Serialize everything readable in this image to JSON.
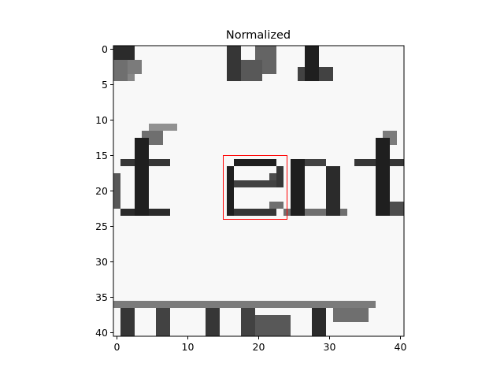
{
  "chart_data": {
    "type": "heatmap",
    "title": "Normalized",
    "colormap": "gray",
    "image_size": [
      41,
      41
    ],
    "x_ticks": [
      "0",
      "10",
      "20",
      "30",
      "40"
    ],
    "y_ticks": [
      "0",
      "5",
      "10",
      "15",
      "20",
      "25",
      "30",
      "35",
      "40"
    ],
    "xlim": [
      -0.5,
      40.5
    ],
    "ylim": [
      40.5,
      -0.5
    ],
    "annotation_box": {
      "x": [
        15,
        24
      ],
      "y": [
        15,
        24
      ],
      "color": "#ff0000"
    }
  }
}
